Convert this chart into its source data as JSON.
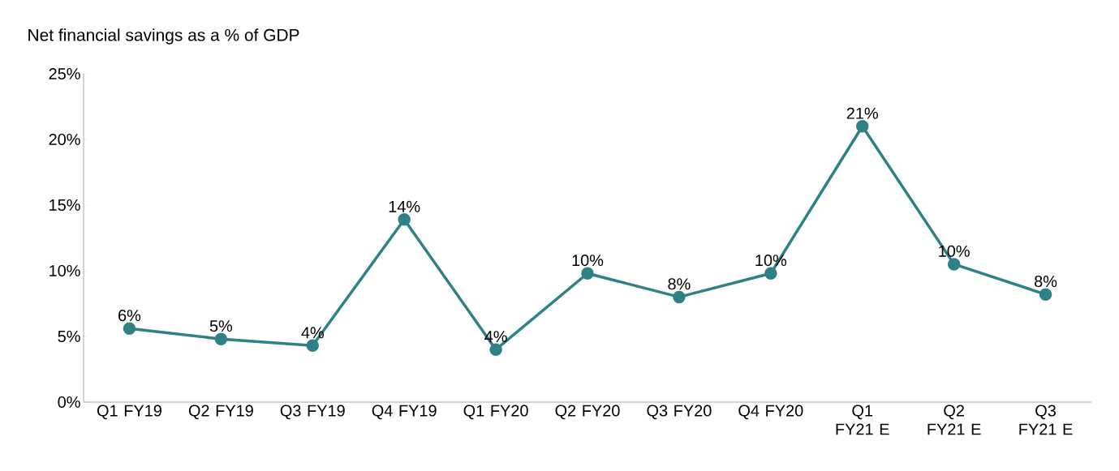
{
  "chart_data": {
    "type": "line",
    "title": "Net financial savings as a % of GDP",
    "categories": [
      "Q1 FY19",
      "Q2 FY19",
      "Q3 FY19",
      "Q4 FY19",
      "Q1 FY20",
      "Q2 FY20",
      "Q3 FY20",
      "Q4 FY20",
      "Q1 FY21 E",
      "Q2 FY21 E",
      "Q3 FY21 E"
    ],
    "series": [
      {
        "color": "#2e8286",
        "values": [
          5.6,
          4.8,
          4.3,
          13.9,
          4.0,
          9.8,
          8.0,
          9.8,
          21.0,
          10.5,
          8.2
        ],
        "value_labels": [
          "6%",
          "5%",
          "4%",
          "14%",
          "4%",
          "10%",
          "8%",
          "10%",
          "21%",
          "10%",
          "8%"
        ]
      }
    ],
    "ylim": [
      0,
      25
    ],
    "yticks": [
      {
        "value": 0,
        "label": "0%"
      },
      {
        "value": 5,
        "label": "5%"
      },
      {
        "value": 10,
        "label": "10%"
      },
      {
        "value": 15,
        "label": "15%"
      },
      {
        "value": 20,
        "label": "20%"
      },
      {
        "value": 25,
        "label": "25%"
      }
    ],
    "marker": "circle",
    "line_style": "solid"
  }
}
